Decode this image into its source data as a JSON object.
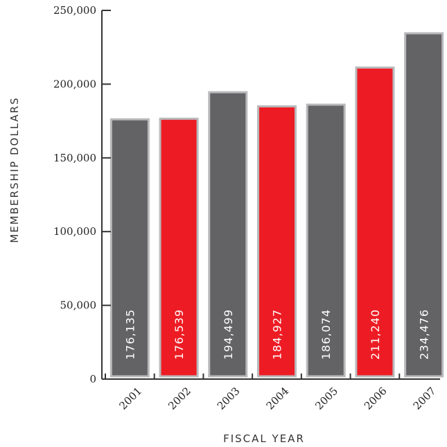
{
  "chart_data": {
    "type": "bar",
    "title": "",
    "xlabel": "FISCAL YEAR",
    "ylabel": "MEMBERSHIP DOLLARS",
    "categories": [
      "2001",
      "2002",
      "2003",
      "2004",
      "2005",
      "2006",
      "2007"
    ],
    "values": [
      176135,
      176539,
      194499,
      184927,
      186074,
      211240,
      234476
    ],
    "value_labels": [
      "176,135",
      "176,539",
      "194,499",
      "184,927",
      "186,074",
      "211,240",
      "234,476"
    ],
    "y_ticks": [
      0,
      50000,
      100000,
      150000,
      200000,
      250000
    ],
    "y_tick_labels": [
      "0",
      "50,000",
      "100,000",
      "150,000",
      "200,000",
      "250,000"
    ],
    "ylim": [
      0,
      250000
    ],
    "grid": false,
    "legend": "none",
    "bar_colors": [
      "#636365",
      "#ed1c24",
      "#636365",
      "#ed1c24",
      "#636365",
      "#ed1c24",
      "#636365"
    ],
    "bar_border_color": "#b9b9bb",
    "axis_color": "#333333"
  }
}
